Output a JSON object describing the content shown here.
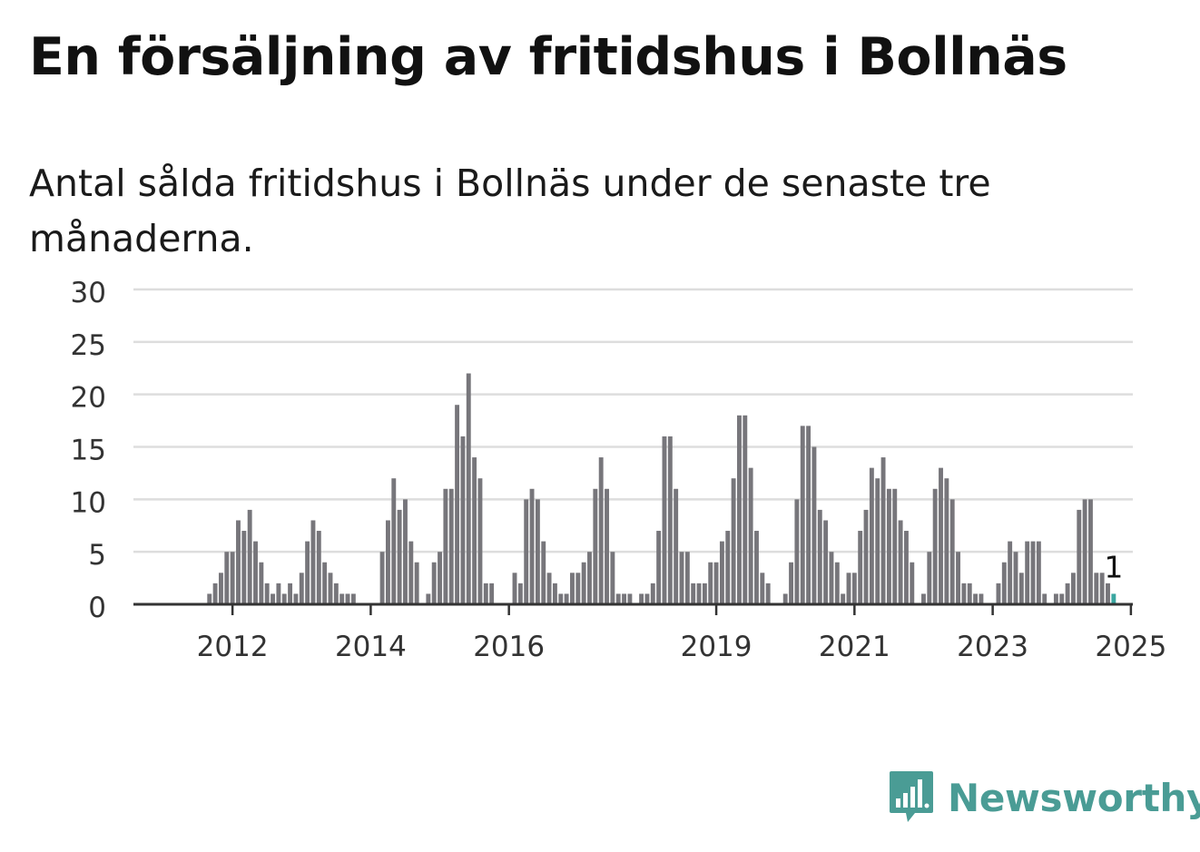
{
  "title": "En försäljning av fritidshus i Bollnäs",
  "subtitle": "Antal sålda fritidshus i Bollnäs under de senaste tre månaderna.",
  "brand": {
    "name": "Newsworthy",
    "color": "#4a9c95",
    "icon": "newsworthy-logo-icon"
  },
  "colors": {
    "bar": "#77767b",
    "highlight": "#3aa6a0",
    "grid": "#dddddd",
    "axis": "#333333"
  },
  "chart_data": {
    "type": "bar",
    "title": "En försäljning av fritidshus i Bollnäs",
    "subtitle": "Antal sålda fritidshus i Bollnäs under de senaste tre månaderna.",
    "xlabel": "",
    "ylabel": "",
    "ylim": [
      0,
      30
    ],
    "yticks": [
      0,
      5,
      10,
      15,
      20,
      25,
      30
    ],
    "xticks": [
      "2012",
      "2014",
      "2016",
      "2019",
      "2021",
      "2023",
      "2025"
    ],
    "grid": true,
    "start_month": "2011-01",
    "frequency": "monthly",
    "series": [
      {
        "name": "Antal sålda fritidshus",
        "values": [
          0,
          0,
          0,
          0,
          0,
          0,
          0,
          0,
          1,
          2,
          3,
          5,
          5,
          8,
          7,
          9,
          6,
          4,
          2,
          1,
          2,
          1,
          2,
          1,
          3,
          6,
          8,
          7,
          4,
          3,
          2,
          1,
          1,
          1,
          0,
          0,
          0,
          0,
          5,
          8,
          12,
          9,
          10,
          6,
          4,
          0,
          1,
          4,
          5,
          11,
          11,
          19,
          16,
          22,
          14,
          12,
          2,
          2,
          0,
          0,
          0,
          3,
          2,
          10,
          11,
          10,
          6,
          3,
          2,
          1,
          1,
          3,
          3,
          4,
          5,
          11,
          14,
          11,
          5,
          1,
          1,
          1,
          0,
          1,
          1,
          2,
          7,
          16,
          16,
          11,
          5,
          5,
          2,
          2,
          2,
          4,
          4,
          6,
          7,
          12,
          18,
          18,
          13,
          7,
          3,
          2,
          0,
          0,
          1,
          4,
          10,
          17,
          17,
          15,
          9,
          8,
          5,
          4,
          1,
          3,
          3,
          7,
          9,
          13,
          12,
          14,
          11,
          11,
          8,
          7,
          4,
          0,
          1,
          5,
          11,
          13,
          12,
          10,
          5,
          2,
          2,
          1,
          1,
          0,
          0,
          2,
          4,
          6,
          5,
          3,
          6,
          6,
          6,
          1,
          0,
          1,
          1,
          2,
          3,
          9,
          10,
          10,
          3,
          3,
          2,
          1
        ]
      }
    ],
    "highlight": {
      "value": 1,
      "label": "1"
    }
  }
}
